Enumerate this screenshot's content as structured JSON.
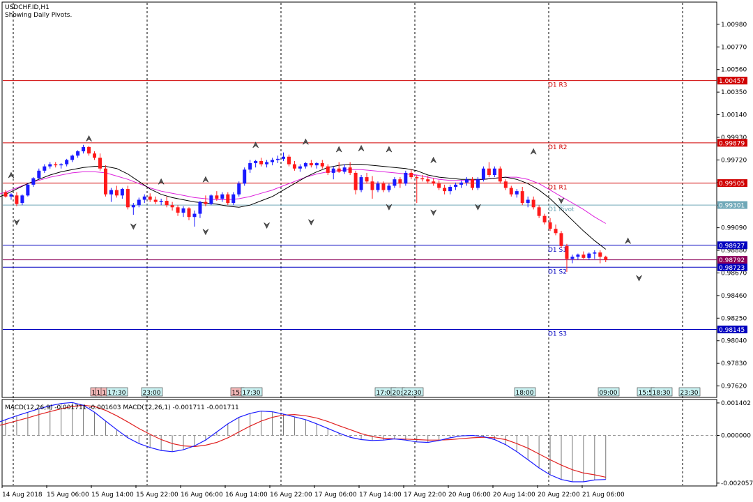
{
  "header": {
    "symbol_line": "USDCHF.ID,H1",
    "pivot_note": "Showing Daily Pivots."
  },
  "colors": {
    "bull": "#1a1aff",
    "bear": "#ff1a1a",
    "resistance": "#d00000",
    "support": "#0000c0",
    "pivot": "#6fa8b8",
    "ma_fast": "#000000",
    "ma_slow": "#dd22dd",
    "macd_line": "#1a1aff",
    "signal_line": "#e02020",
    "histogram": "#777777",
    "current_price": "#8b0058"
  },
  "chart_data": [
    {
      "type": "candlestick",
      "symbol": "USDCHF.ID",
      "timeframe": "H1",
      "ylim": [
        0.9752,
        1.0118
      ],
      "y_ticks": [
        "1.00980",
        "1.00770",
        "1.00560",
        "1.00350",
        "1.00140",
        "0.99930",
        "0.99720",
        "0.99510",
        "0.99300",
        "0.99090",
        "0.98880",
        "0.98670",
        "0.98460",
        "0.98250",
        "0.98040",
        "0.97830",
        "0.97620"
      ],
      "x_tick_labels": [
        "14 Aug 2018",
        "15 Aug 06:00",
        "15 Aug 14:00",
        "15 Aug 22:00",
        "16 Aug 06:00",
        "16 Aug 14:00",
        "16 Aug 22:00",
        "17 Aug 06:00",
        "17 Aug 14:00",
        "17 Aug 22:00",
        "20 Aug 06:00",
        "20 Aug 14:00",
        "20 Aug 22:00",
        "21 Aug 06:00"
      ],
      "pivot_levels": [
        {
          "label": "D1 R3",
          "value": 1.00457,
          "price_tag": "1.00457",
          "kind": "resistance"
        },
        {
          "label": "D1 R2",
          "value": 0.99879,
          "price_tag": "0.99879",
          "kind": "resistance"
        },
        {
          "label": "D1 R1",
          "value": 0.99505,
          "price_tag": "0.99505",
          "kind": "resistance"
        },
        {
          "label": "D1 Pivot",
          "value": 0.99301,
          "price_tag": "0.99301",
          "kind": "pivot"
        },
        {
          "label": "D1 S1",
          "value": 0.98927,
          "price_tag": "0.98927",
          "kind": "support"
        },
        {
          "label": "D1 S2",
          "value": 0.98723,
          "price_tag": "0.98723",
          "kind": "support"
        },
        {
          "label": "D1 S3",
          "value": 0.98145,
          "price_tag": "0.98145",
          "kind": "support"
        }
      ],
      "current_price": {
        "value": 0.98792,
        "price_tag": "0.98792"
      },
      "candles": [
        [
          0.9942,
          0.9944,
          0.9937,
          0.9938
        ],
        [
          0.9938,
          0.9941,
          0.9935,
          0.994
        ],
        [
          0.9939,
          0.9942,
          0.9929,
          0.9931
        ],
        [
          0.9932,
          0.994,
          0.993,
          0.9939
        ],
        [
          0.9939,
          0.995,
          0.9938,
          0.9949
        ],
        [
          0.9949,
          0.9956,
          0.9947,
          0.9955
        ],
        [
          0.9955,
          0.9964,
          0.9954,
          0.9962
        ],
        [
          0.9962,
          0.9968,
          0.996,
          0.9966
        ],
        [
          0.9966,
          0.997,
          0.9964,
          0.9968
        ],
        [
          0.9968,
          0.997,
          0.9965,
          0.9967
        ],
        [
          0.9967,
          0.9969,
          0.9964,
          0.9968
        ],
        [
          0.9968,
          0.9973,
          0.9966,
          0.9972
        ],
        [
          0.9972,
          0.9977,
          0.997,
          0.9976
        ],
        [
          0.9976,
          0.9981,
          0.9974,
          0.998
        ],
        [
          0.998,
          0.9986,
          0.9978,
          0.9984
        ],
        [
          0.9984,
          0.9985,
          0.9976,
          0.9978
        ],
        [
          0.9978,
          0.998,
          0.9972,
          0.9974
        ],
        [
          0.9974,
          0.9978,
          0.9962,
          0.9964
        ],
        [
          0.9964,
          0.9967,
          0.9938,
          0.994
        ],
        [
          0.994,
          0.9946,
          0.9933,
          0.9944
        ],
        [
          0.9944,
          0.9948,
          0.9937,
          0.9939
        ],
        [
          0.9939,
          0.9946,
          0.9936,
          0.9945
        ],
        [
          0.9945,
          0.9948,
          0.9926,
          0.9928
        ],
        [
          0.9928,
          0.9932,
          0.9921,
          0.993
        ],
        [
          0.993,
          0.9937,
          0.9928,
          0.9935
        ],
        [
          0.9935,
          0.994,
          0.9932,
          0.9938
        ],
        [
          0.9938,
          0.9941,
          0.9933,
          0.9935
        ],
        [
          0.9935,
          0.9938,
          0.9931,
          0.9933
        ],
        [
          0.9933,
          0.9936,
          0.993,
          0.9934
        ],
        [
          0.9934,
          0.9938,
          0.9928,
          0.993
        ],
        [
          0.993,
          0.9933,
          0.9925,
          0.9928
        ],
        [
          0.9928,
          0.993,
          0.992,
          0.9923
        ],
        [
          0.9923,
          0.9929,
          0.9919,
          0.9927
        ],
        [
          0.9927,
          0.9928,
          0.9916,
          0.9919
        ],
        [
          0.9919,
          0.9925,
          0.991,
          0.9922
        ],
        [
          0.9922,
          0.9934,
          0.9918,
          0.9933
        ],
        [
          0.9933,
          0.9939,
          0.9929,
          0.9931
        ],
        [
          0.9931,
          0.994,
          0.993,
          0.9939
        ],
        [
          0.9939,
          0.9943,
          0.9934,
          0.9936
        ],
        [
          0.9936,
          0.9942,
          0.9933,
          0.994
        ],
        [
          0.994,
          0.9942,
          0.993,
          0.9932
        ],
        [
          0.9932,
          0.9942,
          0.993,
          0.994
        ],
        [
          0.994,
          0.9952,
          0.9938,
          0.995
        ],
        [
          0.995,
          0.9965,
          0.9948,
          0.9963
        ],
        [
          0.9963,
          0.9972,
          0.996,
          0.9969
        ],
        [
          0.9969,
          0.9972,
          0.9965,
          0.9971
        ],
        [
          0.9971,
          0.9974,
          0.9966,
          0.9968
        ],
        [
          0.9968,
          0.9972,
          0.9965,
          0.997
        ],
        [
          0.997,
          0.9974,
          0.9967,
          0.9972
        ],
        [
          0.9972,
          0.9976,
          0.9969,
          0.9973
        ],
        [
          0.9973,
          0.9979,
          0.9971,
          0.9975
        ],
        [
          0.9975,
          0.9977,
          0.9966,
          0.9968
        ],
        [
          0.9968,
          0.9971,
          0.9962,
          0.9964
        ],
        [
          0.9964,
          0.9968,
          0.9961,
          0.9966
        ],
        [
          0.9966,
          0.997,
          0.9964,
          0.9969
        ],
        [
          0.9969,
          0.9972,
          0.9965,
          0.9967
        ],
        [
          0.9967,
          0.997,
          0.9964,
          0.9969
        ],
        [
          0.9969,
          0.9972,
          0.9964,
          0.9966
        ],
        [
          0.9966,
          0.9968,
          0.9958,
          0.996
        ],
        [
          0.996,
          0.9966,
          0.9954,
          0.9964
        ],
        [
          0.9964,
          0.997,
          0.996,
          0.9961
        ],
        [
          0.9961,
          0.9968,
          0.9959,
          0.9965
        ],
        [
          0.9965,
          0.997,
          0.9958,
          0.996
        ],
        [
          0.996,
          0.9962,
          0.994,
          0.9944
        ],
        [
          0.9944,
          0.9958,
          0.9942,
          0.9956
        ],
        [
          0.9956,
          0.996,
          0.995,
          0.9952
        ],
        [
          0.9952,
          0.9957,
          0.9936,
          0.9944
        ],
        [
          0.9944,
          0.9952,
          0.9942,
          0.995
        ],
        [
          0.995,
          0.9952,
          0.9942,
          0.9944
        ],
        [
          0.9944,
          0.995,
          0.9942,
          0.9948
        ],
        [
          0.9948,
          0.9956,
          0.9946,
          0.9954
        ],
        [
          0.9954,
          0.9956,
          0.9946,
          0.995
        ],
        [
          0.995,
          0.9962,
          0.9948,
          0.996
        ],
        [
          0.996,
          0.9963,
          0.9954,
          0.9956
        ],
        [
          0.9956,
          0.9958,
          0.9932,
          0.9955
        ],
        [
          0.9955,
          0.9958,
          0.9952,
          0.9954
        ],
        [
          0.9954,
          0.9957,
          0.995,
          0.9952
        ],
        [
          0.9952,
          0.9955,
          0.9948,
          0.995
        ],
        [
          0.995,
          0.9953,
          0.9944,
          0.9946
        ],
        [
          0.9946,
          0.9949,
          0.994,
          0.9943
        ],
        [
          0.9943,
          0.9949,
          0.994,
          0.9947
        ],
        [
          0.9947,
          0.9951,
          0.9944,
          0.9949
        ],
        [
          0.9949,
          0.9953,
          0.9946,
          0.9951
        ],
        [
          0.9951,
          0.9956,
          0.9948,
          0.9954
        ],
        [
          0.9954,
          0.9956,
          0.9944,
          0.9946
        ],
        [
          0.9946,
          0.9956,
          0.9944,
          0.9954
        ],
        [
          0.9954,
          0.9966,
          0.9952,
          0.9964
        ],
        [
          0.9964,
          0.997,
          0.9956,
          0.9958
        ],
        [
          0.9958,
          0.9966,
          0.9956,
          0.9964
        ],
        [
          0.9964,
          0.9966,
          0.995,
          0.9952
        ],
        [
          0.9952,
          0.9954,
          0.9944,
          0.9946
        ],
        [
          0.9946,
          0.9948,
          0.9938,
          0.994
        ],
        [
          0.994,
          0.9945,
          0.9937,
          0.9943
        ],
        [
          0.9943,
          0.9947,
          0.993,
          0.9932
        ],
        [
          0.9932,
          0.9938,
          0.9928,
          0.9935
        ],
        [
          0.9935,
          0.9938,
          0.9926,
          0.9928
        ],
        [
          0.9928,
          0.993,
          0.9918,
          0.992
        ],
        [
          0.992,
          0.9922,
          0.9912,
          0.9914
        ],
        [
          0.9914,
          0.9918,
          0.9906,
          0.9908
        ],
        [
          0.9908,
          0.9912,
          0.9902,
          0.9904
        ],
        [
          0.9904,
          0.9906,
          0.989,
          0.9892
        ],
        [
          0.9892,
          0.9894,
          0.9868,
          0.988
        ],
        [
          0.988,
          0.9884,
          0.9876,
          0.9882
        ],
        [
          0.9882,
          0.9885,
          0.9879,
          0.9884
        ],
        [
          0.9884,
          0.9887,
          0.988,
          0.9881
        ],
        [
          0.9881,
          0.9886,
          0.9879,
          0.9885
        ],
        [
          0.9885,
          0.9888,
          0.988,
          0.9886
        ],
        [
          0.9886,
          0.9888,
          0.9876,
          0.9882
        ],
        [
          0.9882,
          0.9883,
          0.9877,
          0.9879
        ]
      ],
      "ma_fast": [
        0.9932,
        0.9933,
        0.9934,
        0.9936,
        0.994,
        0.9945,
        0.995,
        0.9954,
        0.9958,
        0.9961,
        0.9963,
        0.9965,
        0.9966,
        0.9966,
        0.9964,
        0.9959,
        0.9952,
        0.9945,
        0.994,
        0.9937,
        0.9935,
        0.9933,
        0.9932,
        0.9931,
        0.9929,
        0.9928,
        0.993,
        0.9934,
        0.9938,
        0.9944,
        0.995,
        0.9956,
        0.9961,
        0.9965,
        0.9967,
        0.9968,
        0.9968,
        0.9967,
        0.9966,
        0.9965,
        0.9964,
        0.9962,
        0.9958,
        0.9956,
        0.9955,
        0.9954,
        0.9954,
        0.9954,
        0.9955,
        0.9956,
        0.9954,
        0.995,
        0.9944,
        0.9936,
        0.9926,
        0.9916,
        0.9906,
        0.9897,
        0.9889
      ],
      "ma_slow": [
        0.9933,
        0.9934,
        0.9936,
        0.9939,
        0.9942,
        0.9946,
        0.995,
        0.9953,
        0.9956,
        0.9958,
        0.996,
        0.9961,
        0.9961,
        0.996,
        0.9957,
        0.9954,
        0.995,
        0.9946,
        0.9943,
        0.9941,
        0.9939,
        0.9937,
        0.9936,
        0.9935,
        0.9935,
        0.9936,
        0.9938,
        0.9941,
        0.9944,
        0.9948,
        0.9952,
        0.9956,
        0.9959,
        0.9961,
        0.9962,
        0.9963,
        0.9963,
        0.9962,
        0.9961,
        0.996,
        0.9959,
        0.9958,
        0.9956,
        0.9954,
        0.9953,
        0.9953,
        0.9953,
        0.9954,
        0.9955,
        0.9956,
        0.9956,
        0.9954,
        0.995,
        0.9944,
        0.9938,
        0.9932,
        0.9926,
        0.9919,
        0.9913
      ],
      "fractals_up": [
        [
          1,
          0.9954
        ],
        [
          15,
          0.9988
        ],
        [
          28,
          0.9948
        ],
        [
          36,
          0.995
        ],
        [
          45,
          0.9982
        ],
        [
          54,
          0.9985
        ],
        [
          60,
          0.9978
        ],
        [
          64,
          0.9979
        ],
        [
          69,
          0.9978
        ],
        [
          77,
          0.9968
        ],
        [
          95,
          0.9976
        ],
        [
          112,
          0.9893
        ]
      ],
      "fractals_down": [
        [
          2,
          0.9918
        ],
        [
          23,
          0.9914
        ],
        [
          36,
          0.9909
        ],
        [
          47,
          0.9915
        ],
        [
          55,
          0.9918
        ],
        [
          69,
          0.9932
        ],
        [
          77,
          0.9927
        ],
        [
          85,
          0.9932
        ],
        [
          100,
          0.9938
        ],
        [
          114,
          0.9866
        ]
      ],
      "time_markers": [
        "1",
        "1",
        "1",
        "17:30",
        "23:00",
        "15:",
        "17:30",
        "17:00",
        "20:",
        "22:30",
        "18:00",
        "09:00",
        "15:5",
        "18:30",
        "23:30"
      ]
    },
    {
      "type": "macd",
      "legend": "MACD(12,26,9) -0.001711 -0.001603 MACD(12,26,1) -0.001711 -0.001711",
      "ylim": [
        -0.00215,
        0.00152
      ],
      "y_ticks": [
        "0.001402",
        "0.000000",
        "-0.002057"
      ],
      "macd": [
        0.0001,
        0.0002,
        0.00035,
        0.0005,
        0.00068,
        0.00085,
        0.001,
        0.00115,
        0.00128,
        0.00138,
        0.00142,
        0.0013,
        0.001,
        0.00062,
        0.00025,
        -0.0001,
        -0.00035,
        -0.00052,
        -0.00065,
        -0.0007,
        -0.00062,
        -0.00045,
        -0.0002,
        0.00015,
        0.0005,
        0.00078,
        0.00095,
        0.00105,
        0.00102,
        0.00092,
        0.0008,
        0.00068,
        0.0005,
        0.0003,
        0.0001,
        -8e-05,
        -0.00018,
        -0.00022,
        -0.0002,
        -0.00015,
        -0.0002,
        -0.00028,
        -0.0003,
        -0.00022,
        -0.0001,
        -2e-05,
        0.0,
        -5e-05,
        -0.00018,
        -0.0004,
        -0.0007,
        -0.00105,
        -0.0014,
        -0.0017,
        -0.0019,
        -0.002,
        -0.002,
        -0.00192,
        -0.0019
      ],
      "signal": [
        0.00015,
        0.0002,
        0.00028,
        0.00038,
        0.0005,
        0.00063,
        0.00076,
        0.0009,
        0.00103,
        0.00115,
        0.00125,
        0.0013,
        0.00125,
        0.00108,
        0.00085,
        0.00058,
        0.0003,
        5e-05,
        -0.00018,
        -0.00035,
        -0.00045,
        -0.00048,
        -0.00042,
        -0.0003,
        -0.0001,
        0.00015,
        0.0004,
        0.00062,
        0.00078,
        0.00088,
        0.0009,
        0.00085,
        0.00075,
        0.0006,
        0.00042,
        0.00025,
        8e-05,
        -5e-05,
        -0.00012,
        -0.00015,
        -0.00016,
        -0.00018,
        -0.0002,
        -0.0002,
        -0.00018,
        -0.00014,
        -0.0001,
        -8e-05,
        -0.0001,
        -0.00018,
        -0.00035,
        -0.00055,
        -0.0008,
        -0.00105,
        -0.00128,
        -0.00148,
        -0.00162,
        -0.0017,
        -0.0018
      ],
      "zero_line": 0
    }
  ]
}
